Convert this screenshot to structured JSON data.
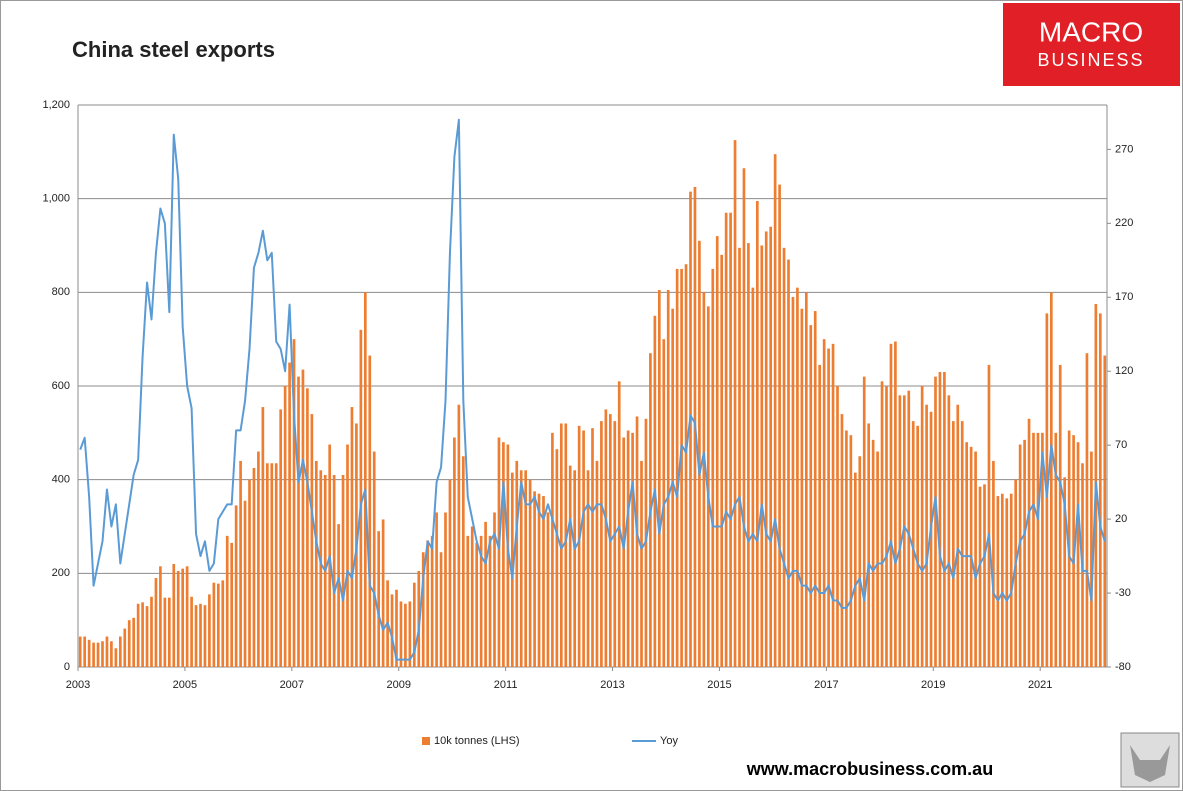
{
  "chart_data": {
    "type": "bar",
    "title": "China steel exports",
    "categories": [
      "2003",
      null,
      null,
      null,
      null,
      null,
      null,
      null,
      null,
      null,
      null,
      null,
      null,
      null,
      null,
      null,
      null,
      null,
      null,
      null,
      null,
      null,
      null,
      null,
      "2005",
      null,
      null,
      null,
      null,
      null,
      null,
      null,
      null,
      null,
      null,
      null,
      null,
      null,
      null,
      null,
      null,
      null,
      null,
      null,
      null,
      null,
      null,
      null,
      "2007",
      null,
      null,
      null,
      null,
      null,
      null,
      null,
      null,
      null,
      null,
      null,
      null,
      null,
      null,
      null,
      null,
      null,
      null,
      null,
      null,
      null,
      null,
      null,
      "2009",
      null,
      null,
      null,
      null,
      null,
      null,
      null,
      null,
      null,
      null,
      null,
      null,
      null,
      null,
      null,
      null,
      null,
      null,
      null,
      null,
      null,
      null,
      null,
      "2011",
      null,
      null,
      null,
      null,
      null,
      null,
      null,
      null,
      null,
      null,
      null,
      null,
      null,
      null,
      null,
      null,
      null,
      null,
      null,
      null,
      null,
      null,
      null,
      "2013",
      null,
      null,
      null,
      null,
      null,
      null,
      null,
      null,
      null,
      null,
      null,
      null,
      null,
      null,
      null,
      null,
      null,
      null,
      null,
      null,
      null,
      null,
      null,
      "2015",
      null,
      null,
      null,
      null,
      null,
      null,
      null,
      null,
      null,
      null,
      null,
      null,
      null,
      null,
      null,
      null,
      null,
      null,
      null,
      null,
      null,
      null,
      null,
      "2017",
      null,
      null,
      null,
      null,
      null,
      null,
      null,
      null,
      null,
      null,
      null,
      null,
      null,
      null,
      null,
      null,
      null,
      null,
      null,
      null,
      null,
      null,
      null,
      "2019",
      null,
      null,
      null,
      null,
      null,
      null,
      null,
      null,
      null,
      null,
      null,
      null,
      null,
      null,
      null,
      null,
      null,
      null,
      null,
      null,
      null,
      null,
      null,
      "2021",
      null,
      null,
      null,
      null,
      null,
      null,
      null,
      null,
      null,
      null,
      null,
      null,
      null,
      null
    ],
    "series": [
      {
        "name": "10k tonnes (LHS)",
        "type": "bar",
        "color": "#ed7d31",
        "values": [
          65,
          65,
          58,
          52,
          52,
          55,
          65,
          55,
          40,
          65,
          82,
          100,
          105,
          135,
          138,
          130,
          150,
          190,
          215,
          148,
          148,
          220,
          205,
          210,
          215,
          150,
          132,
          135,
          132,
          155,
          180,
          178,
          185,
          280,
          265,
          345,
          440,
          355,
          400,
          425,
          460,
          555,
          435,
          435,
          435,
          550,
          600,
          650,
          700,
          620,
          635,
          595,
          540,
          440,
          420,
          410,
          475,
          410,
          305,
          410,
          475,
          555,
          520,
          720,
          800,
          665,
          460,
          290,
          315,
          185,
          155,
          165,
          140,
          135,
          140,
          180,
          205,
          245,
          270,
          280,
          330,
          245,
          330,
          400,
          490,
          560,
          450,
          280,
          300,
          265,
          280,
          310,
          280,
          330,
          490,
          480,
          475,
          415,
          440,
          420,
          420,
          400,
          375,
          370,
          365,
          330,
          500,
          465,
          520,
          520,
          430,
          420,
          515,
          505,
          420,
          510,
          440,
          525,
          550,
          540,
          525,
          610,
          490,
          505,
          500,
          535,
          440,
          530,
          670,
          750,
          805,
          700,
          805,
          765,
          850,
          850,
          860,
          1015,
          1025,
          910,
          800,
          770,
          850,
          920,
          880,
          970,
          970,
          1125,
          895,
          1065,
          905,
          810,
          995,
          900,
          930,
          940,
          1095,
          1030,
          895,
          870,
          790,
          810,
          765,
          800,
          730,
          760,
          645,
          700,
          680,
          690,
          600,
          540,
          505,
          495,
          415,
          450,
          620,
          520,
          485,
          460,
          610,
          600,
          690,
          695,
          580,
          580,
          590,
          525,
          515,
          600,
          560,
          545,
          620,
          630,
          630,
          580,
          525,
          560,
          525,
          480,
          470,
          460,
          385,
          390,
          645,
          440,
          365,
          370,
          360,
          370,
          400,
          475,
          485,
          530,
          500,
          500,
          500,
          755,
          800,
          500,
          645,
          405,
          505,
          495,
          480,
          435,
          670,
          460,
          775,
          755,
          665
        ]
      },
      {
        "name": "Yoy",
        "type": "line",
        "axis": "y2",
        "color": "#5b9bd5",
        "values": [
          67,
          75,
          35,
          -25,
          -10,
          5,
          40,
          15,
          30,
          -10,
          10,
          30,
          50,
          60,
          130,
          180,
          155,
          200,
          230,
          220,
          160,
          280,
          250,
          150,
          110,
          95,
          10,
          -5,
          5,
          -15,
          -10,
          20,
          25,
          30,
          30,
          80,
          80,
          100,
          135,
          190,
          200,
          215,
          195,
          200,
          140,
          135,
          120,
          165,
          90,
          45,
          60,
          45,
          25,
          5,
          -10,
          -15,
          -5,
          -30,
          -20,
          -35,
          -15,
          -20,
          0,
          30,
          40,
          -25,
          -30,
          -45,
          -55,
          -50,
          -60,
          -75,
          -75,
          -75,
          -75,
          -70,
          -55,
          -20,
          5,
          0,
          45,
          55,
          100,
          200,
          265,
          290,
          100,
          35,
          20,
          5,
          -5,
          -10,
          5,
          10,
          0,
          45,
          0,
          -20,
          15,
          45,
          30,
          30,
          35,
          25,
          20,
          30,
          20,
          10,
          0,
          5,
          20,
          0,
          5,
          25,
          30,
          25,
          30,
          30,
          20,
          5,
          10,
          15,
          0,
          25,
          45,
          10,
          0,
          5,
          25,
          40,
          10,
          30,
          35,
          45,
          35,
          70,
          65,
          90,
          85,
          50,
          65,
          35,
          15,
          15,
          15,
          25,
          20,
          30,
          35,
          15,
          5,
          10,
          5,
          30,
          10,
          5,
          20,
          0,
          -10,
          -20,
          -15,
          -15,
          -25,
          -25,
          -30,
          -25,
          -30,
          -30,
          -25,
          -35,
          -35,
          -40,
          -40,
          -35,
          -25,
          -20,
          -35,
          -10,
          -15,
          -10,
          -10,
          -5,
          5,
          -10,
          0,
          15,
          10,
          0,
          -10,
          -15,
          -10,
          15,
          35,
          -5,
          -15,
          -10,
          -20,
          0,
          -5,
          -5,
          -5,
          -20,
          -10,
          -5,
          10,
          -30,
          -35,
          -30,
          -35,
          -30,
          -10,
          5,
          10,
          25,
          30,
          20,
          65,
          35,
          70,
          50,
          45,
          30,
          -5,
          -10,
          30,
          -15,
          -15,
          -35,
          45,
          15,
          5
        ]
      }
    ],
    "ylim": [
      0,
      1200
    ],
    "yticks": [
      0,
      200,
      400,
      600,
      800,
      {
        "value": 1000,
        "label": "1,000"
      },
      {
        "value": 1200,
        "label": "1,200"
      }
    ],
    "y2lim": [
      -80,
      300
    ],
    "y2ticks": [
      -80,
      -30,
      20,
      70,
      120,
      170,
      220,
      270
    ],
    "grid": true
  },
  "logo": {
    "line1": "MACRO",
    "line2": "BUSINESS"
  },
  "website": "www.macrobusiness.com.au"
}
